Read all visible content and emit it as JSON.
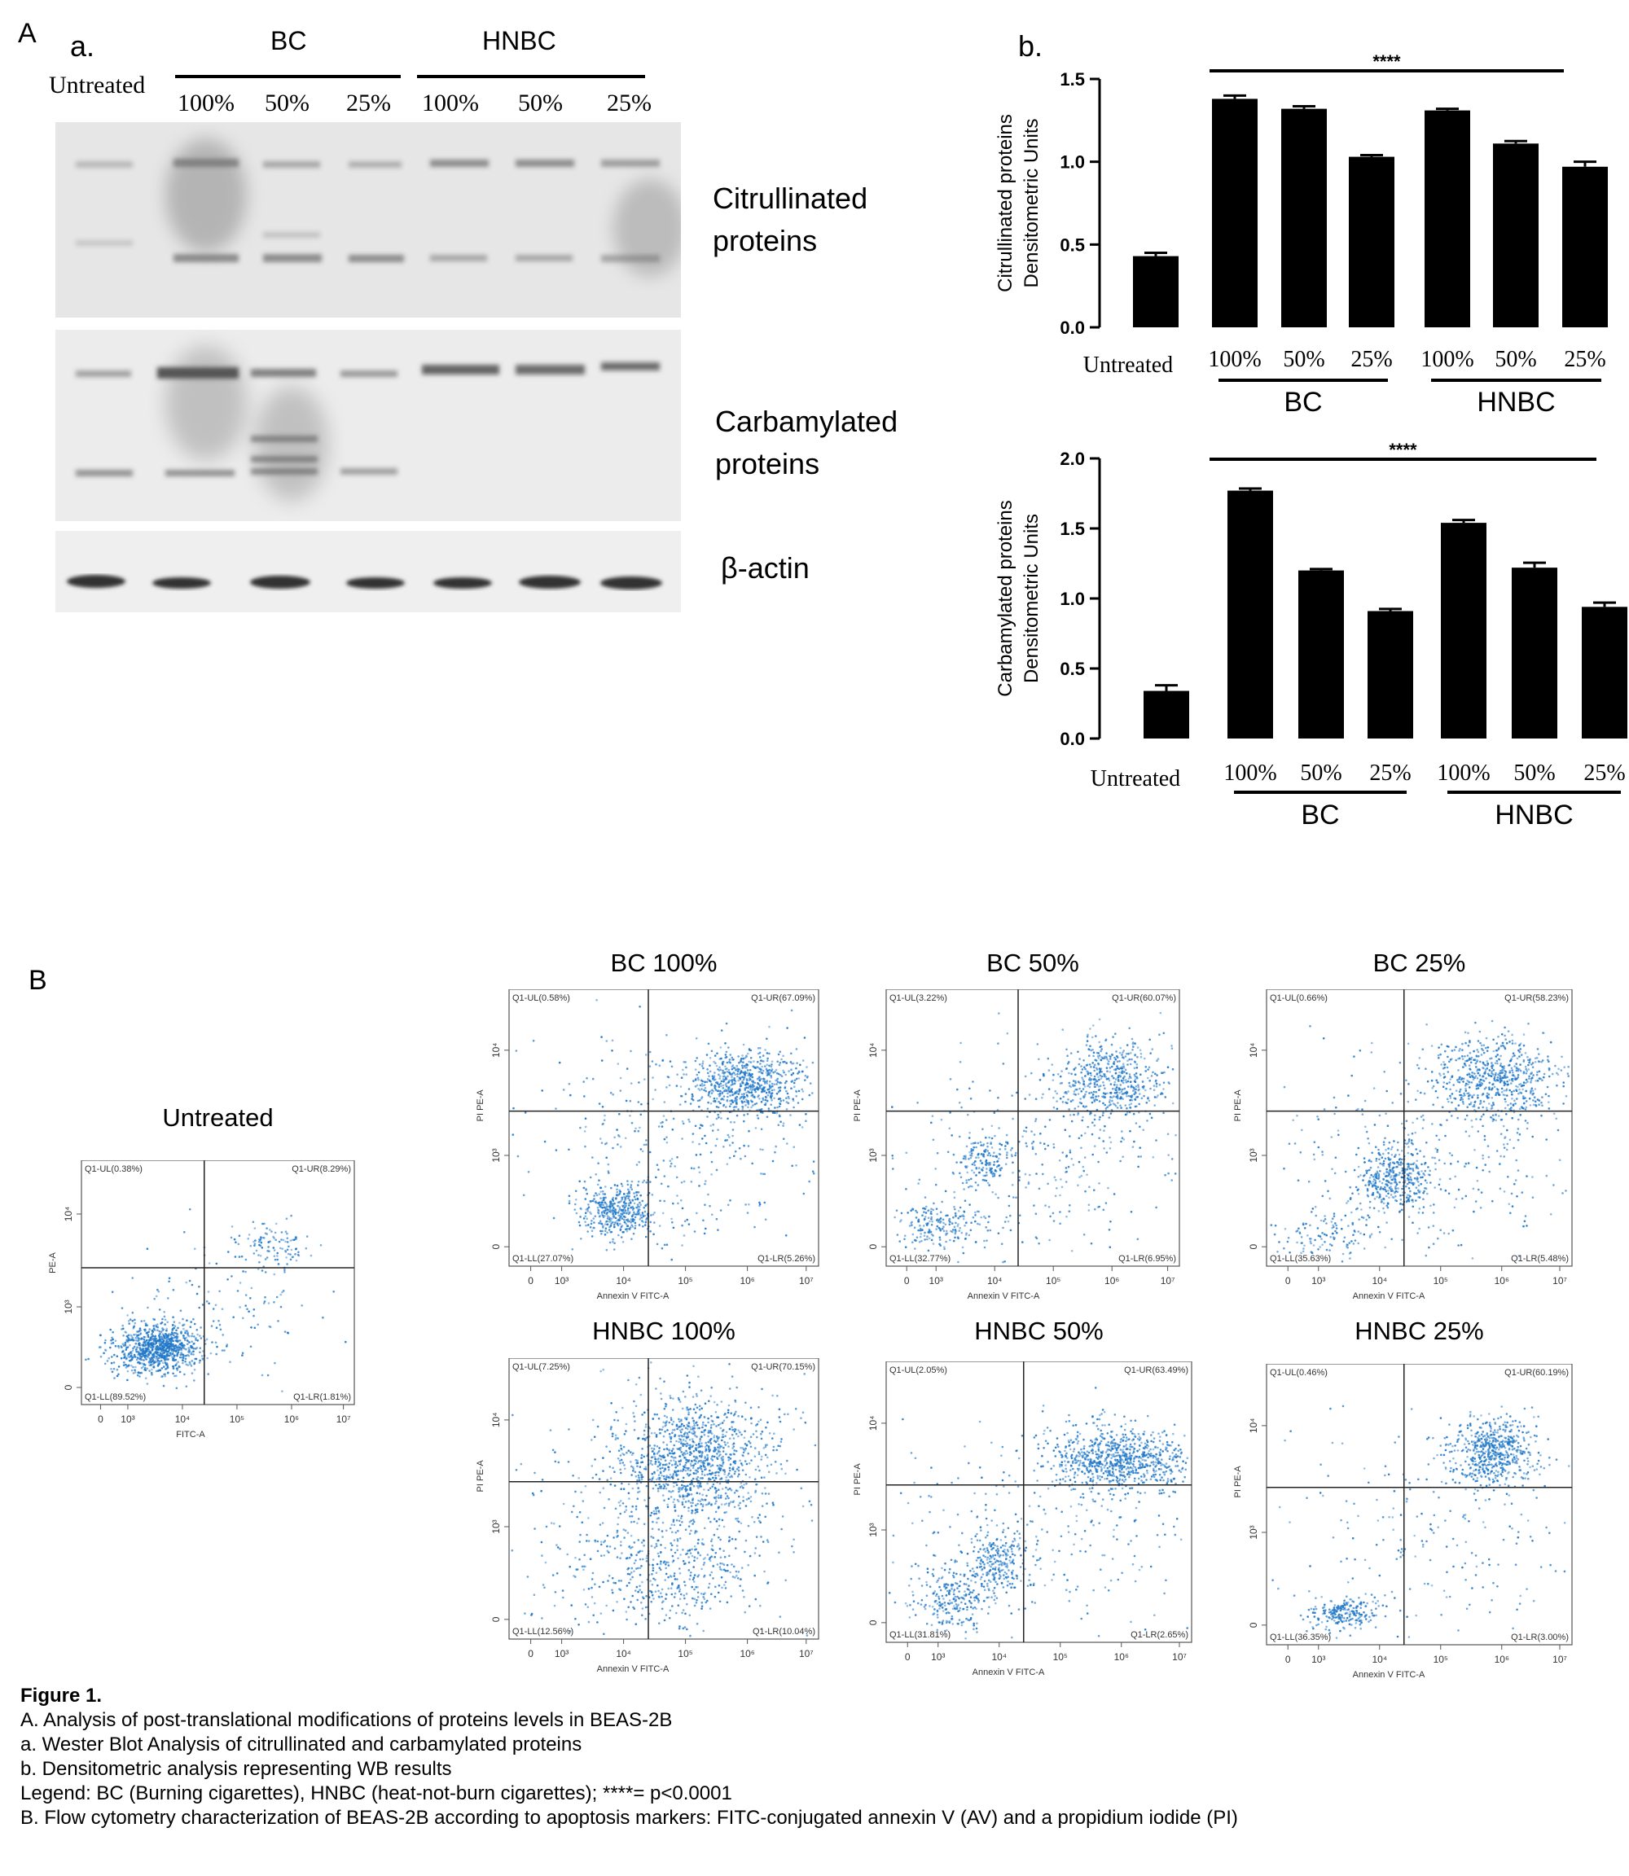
{
  "panel_A": {
    "letter": "A",
    "sub_a": "a.",
    "sub_b": "b.",
    "wb": {
      "group_bc": "BC",
      "group_hnbc": "HNBC",
      "lanes": [
        "Untreated",
        "100%",
        "50%",
        "25%",
        "100%",
        "50%",
        "25%"
      ],
      "labels": {
        "citrullinated": [
          "Citrullinated",
          "proteins"
        ],
        "carbamylated": [
          "Carbamylated",
          "proteins"
        ],
        "actin": "β-actin"
      }
    }
  },
  "chart_data": [
    {
      "type": "bar",
      "ylabel": [
        "Citrullinated proteins",
        "Densitometric Units"
      ],
      "ylim": [
        0,
        1.5
      ],
      "yticks": [
        "0.0",
        "0.5",
        "1.0",
        "1.5"
      ],
      "categories": [
        "Untreated",
        "100%",
        "50%",
        "25%",
        "100%",
        "50%",
        "25%"
      ],
      "values": [
        0.43,
        1.38,
        1.32,
        1.03,
        1.31,
        1.11,
        0.97
      ],
      "errors": [
        0.02,
        0.02,
        0.015,
        0.01,
        0.01,
        0.015,
        0.03
      ],
      "groups": [
        {
          "name": "BC",
          "from": 1,
          "to": 3
        },
        {
          "name": "HNBC",
          "from": 4,
          "to": 6
        }
      ],
      "significance": "****",
      "color": "#000000"
    },
    {
      "type": "bar",
      "ylabel": [
        "Carbamylated proteins",
        "Densitometric Units"
      ],
      "ylim": [
        0,
        2.0
      ],
      "yticks": [
        "0.0",
        "0.5",
        "1.0",
        "1.5",
        "2.0"
      ],
      "categories": [
        "Untreated",
        "100%",
        "50%",
        "25%",
        "100%",
        "50%",
        "25%"
      ],
      "values": [
        0.34,
        1.77,
        1.2,
        0.91,
        1.54,
        1.22,
        0.94
      ],
      "errors": [
        0.04,
        0.015,
        0.01,
        0.015,
        0.02,
        0.035,
        0.03
      ],
      "groups": [
        {
          "name": "BC",
          "from": 1,
          "to": 3
        },
        {
          "name": "HNBC",
          "from": 4,
          "to": 6
        }
      ],
      "significance": "****",
      "color": "#000000"
    }
  ],
  "panel_B": {
    "letter": "B",
    "dot_color": "#1f77c8",
    "plots": [
      {
        "title": "Untreated",
        "ul": "Q1-UL(0.38%)",
        "ur": "Q1-UR(8.29%)",
        "ll": "Q1-LL(89.52%)",
        "lr": "Q1-LR(1.81%)",
        "xlabel": "FITC-A",
        "ylabel": "PE-A"
      },
      {
        "title": "BC 100%",
        "ul": "Q1-UL(0.58%)",
        "ur": "Q1-UR(67.09%)",
        "ll": "Q1-LL(27.07%)",
        "lr": "Q1-LR(5.26%)",
        "xlabel": "Annexin V FITC-A",
        "ylabel": "PI PE-A"
      },
      {
        "title": "BC 50%",
        "ul": "Q1-UL(3.22%)",
        "ur": "Q1-UR(60.07%)",
        "ll": "Q1-LL(32.77%)",
        "lr": "Q1-LR(6.95%)",
        "xlabel": "Annexin V FITC-A",
        "ylabel": "PI PE-A"
      },
      {
        "title": "BC 25%",
        "ul": "Q1-UL(0.66%)",
        "ur": "Q1-UR(58.23%)",
        "ll": "Q1-LL(35.63%)",
        "lr": "Q1-LR(5.48%)",
        "xlabel": "Annexin V FITC-A",
        "ylabel": "PI PE-A"
      },
      {
        "title": "HNBC 100%",
        "ul": "Q1-UL(7.25%)",
        "ur": "Q1-UR(70.15%)",
        "ll": "Q1-LL(12.56%)",
        "lr": "Q1-LR(10.04%)",
        "xlabel": "Annexin V FITC-A",
        "ylabel": "PI PE-A"
      },
      {
        "title": "HNBC 50%",
        "ul": "Q1-UL(2.05%)",
        "ur": "Q1-UR(63.49%)",
        "ll": "Q1-LL(31.81%)",
        "lr": "Q1-LR(2.65%)",
        "xlabel": "Annexin V FITC-A",
        "ylabel": "PI PE-A"
      },
      {
        "title": "HNBC 25%",
        "ul": "Q1-UL(0.46%)",
        "ur": "Q1-UR(60.19%)",
        "ll": "Q1-LL(36.35%)",
        "lr": "Q1-LR(3.00%)",
        "xlabel": "Annexin V FITC-A",
        "ylabel": "PI PE-A"
      }
    ],
    "xtick_labels": [
      "0",
      "10³",
      "10⁴",
      "10⁵",
      "10⁶",
      "10⁷"
    ],
    "ytick_labels": [
      "0",
      "10³",
      "10⁴"
    ]
  },
  "caption": {
    "title": "Figure 1.",
    "lines": [
      "A. Analysis of post-translational modifications of proteins levels in BEAS-2B",
      "a. Wester Blot Analysis of citrullinated and carbamylated proteins",
      "b. Densitometric analysis representing WB results",
      "Legend: BC (Burning cigarettes), HNBC (heat-not-burn cigarettes); ****= p<0.0001",
      "B. Flow cytometry characterization of BEAS-2B according to apoptosis markers: FITC-conjugated annexin V (AV) and a propidium iodide (PI)"
    ]
  }
}
